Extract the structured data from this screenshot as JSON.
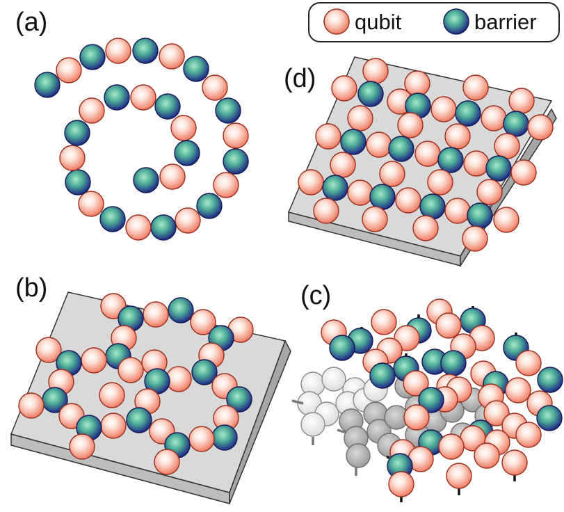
{
  "legend": {
    "qubit_label": "qubit",
    "barrier_label": "barrier"
  },
  "panels": {
    "a": {
      "label": "(a)"
    },
    "b": {
      "label": "(b)"
    },
    "c": {
      "label": "(c)"
    },
    "d": {
      "label": "(d)"
    }
  },
  "colors": {
    "qubit_center": "#ffffff",
    "qubit_edge": "#ef7c62",
    "qubit_outline": "#9b2e1e",
    "barrier_center": "#7fd3b0",
    "barrier_edge": "#1f2a86",
    "barrier_outline": "#141a55",
    "substrate_top": "#d9d9d9",
    "substrate_side": "#b3b3b3",
    "background_chain_light": "#eeeeee",
    "background_chain_dark": "#bdbdbd"
  }
}
